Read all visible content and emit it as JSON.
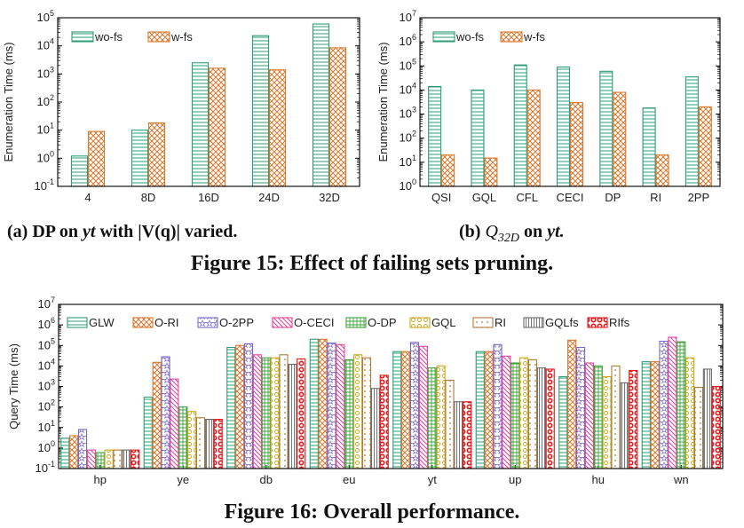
{
  "colors": {
    "green": "#2e9c78",
    "orange": "#d9772f",
    "purple": "#7a68c8",
    "pink": "#e0479a",
    "lime": "#3fa33c",
    "yellow": "#c8a81e",
    "brown": "#b07a3a",
    "gray": "#6a6a6a",
    "red": "#e41a1c"
  },
  "captions": {
    "a_prefix": "(a) DP on ",
    "a_italic": "yt",
    "a_suffix": " with |V(q)| varied.",
    "b_prefix": "(b) ",
    "b_q": "Q",
    "b_sub": "32D",
    "b_mid": " on ",
    "b_italic": "yt.",
    "fig15": "Figure 15: Effect of failing sets pruning.",
    "fig16": "Figure 16: Overall performance."
  },
  "chart_data": [
    {
      "type": "bar",
      "yscale": "log",
      "ylim_exp": [
        -1,
        5
      ],
      "ylabel": "Enumeration Time (ms)",
      "categories": [
        "4",
        "8D",
        "16D",
        "24D",
        "32D"
      ],
      "legend_position": "top-left",
      "series": [
        {
          "name": "wo-fs",
          "values": [
            1.2,
            10,
            2500,
            23000,
            60000
          ]
        },
        {
          "name": "w-fs",
          "values": [
            9,
            18,
            1600,
            1400,
            8500
          ]
        }
      ]
    },
    {
      "type": "bar",
      "yscale": "log",
      "ylim_exp": [
        0,
        7
      ],
      "ylabel": "Enumeration Time (ms)",
      "categories": [
        "QSI",
        "GQL",
        "CFL",
        "CECI",
        "DP",
        "RI",
        "2PP"
      ],
      "legend_position": "top-left",
      "series": [
        {
          "name": "wo-fs",
          "values": [
            14000,
            10000,
            110000,
            90000,
            60000,
            1800,
            35000
          ]
        },
        {
          "name": "w-fs",
          "values": [
            20,
            15,
            10000,
            3000,
            8000,
            20,
            2000
          ]
        }
      ]
    },
    {
      "type": "bar",
      "yscale": "log",
      "ylim_exp": [
        -1,
        7
      ],
      "ylabel": "Query Time (ms)",
      "categories": [
        "hp",
        "ye",
        "db",
        "eu",
        "yt",
        "up",
        "hu",
        "wn"
      ],
      "legend_position": "top",
      "series": [
        {
          "name": "GLW",
          "values": [
            3,
            300,
            80000,
            200000,
            50000,
            50000,
            3000,
            16000
          ]
        },
        {
          "name": "O-RI",
          "values": [
            4,
            15000,
            100000,
            200000,
            50000,
            50000,
            180000,
            16000
          ]
        },
        {
          "name": "O-2PP",
          "values": [
            8,
            28000,
            120000,
            130000,
            140000,
            110000,
            80000,
            160000
          ]
        },
        {
          "name": "O-CECI",
          "values": [
            0.8,
            2300,
            35000,
            110000,
            90000,
            30000,
            14000,
            250000
          ]
        },
        {
          "name": "O-DP",
          "values": [
            0.6,
            100,
            25000,
            20000,
            8000,
            14000,
            10000,
            150000
          ]
        },
        {
          "name": "GQL",
          "values": [
            0.8,
            60,
            25000,
            35000,
            10000,
            25000,
            3000,
            25000
          ]
        },
        {
          "name": "RI",
          "values": [
            0.8,
            30,
            35000,
            25000,
            2000,
            20000,
            10000,
            900
          ]
        },
        {
          "name": "GQLfs",
          "values": [
            0.8,
            25,
            12000,
            800,
            180,
            8000,
            1500,
            7000
          ]
        },
        {
          "name": "RIfs",
          "values": [
            0.8,
            25,
            22000,
            3500,
            180,
            7000,
            6000,
            1000
          ]
        }
      ]
    }
  ]
}
